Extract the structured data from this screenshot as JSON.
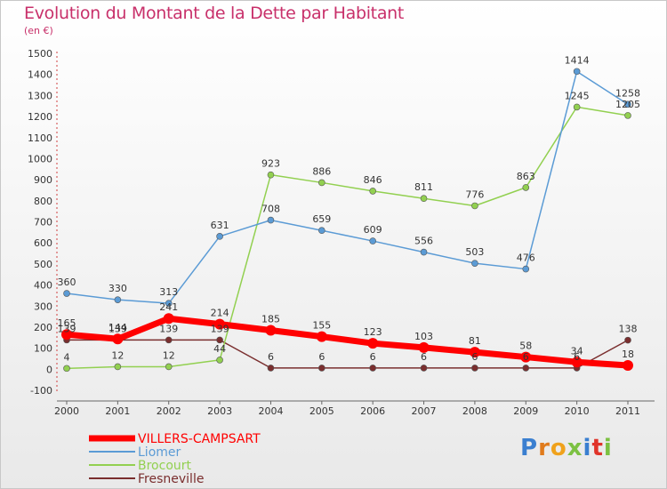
{
  "title": "Evolution du Montant de la Dette par Habitant",
  "subtitle": "(en €)",
  "logo": {
    "text": "Proxiti",
    "letters": [
      {
        "ch": "P",
        "color": "#3a7fd0"
      },
      {
        "ch": "r",
        "color": "#e07b1c"
      },
      {
        "ch": "o",
        "color": "#f0a21c"
      },
      {
        "ch": "x",
        "color": "#7cc142"
      },
      {
        "ch": "i",
        "color": "#3a7fd0"
      },
      {
        "ch": "t",
        "color": "#e0342a"
      },
      {
        "ch": "i",
        "color": "#7cc142"
      }
    ]
  },
  "chart_data": {
    "type": "line",
    "x": [
      "2000",
      "2001",
      "2002",
      "2003",
      "2004",
      "2005",
      "2006",
      "2007",
      "2008",
      "2009",
      "2010",
      "2011"
    ],
    "ylim": [
      -100,
      1500
    ],
    "yticks": [
      -100,
      0,
      100,
      200,
      300,
      400,
      500,
      600,
      700,
      800,
      900,
      1000,
      1100,
      1200,
      1300,
      1400,
      1500
    ],
    "grid": false,
    "legend_position": "bottom-left",
    "series": [
      {
        "name": "VILLERS-CAMPSART",
        "color": "#ff0000",
        "width": 7,
        "marker_r": 6,
        "values": [
          165,
          144,
          241,
          214,
          185,
          155,
          123,
          103,
          81,
          58,
          34,
          18
        ],
        "labels": [
          "165",
          "144",
          "241",
          "214",
          "185",
          "155",
          "123",
          "103",
          "81",
          "58",
          "34",
          "18"
        ]
      },
      {
        "name": "Liomer",
        "color": "#5b9bd5",
        "width": 1.5,
        "marker_r": 3.5,
        "values": [
          360,
          330,
          313,
          631,
          708,
          659,
          609,
          556,
          503,
          476,
          1414,
          1258
        ],
        "labels": [
          "360",
          "330",
          "313",
          "631",
          "708",
          "659",
          "609",
          "556",
          "503",
          "476",
          "1414",
          "1258"
        ]
      },
      {
        "name": "Brocourt",
        "color": "#92d050",
        "width": 1.5,
        "marker_r": 3.5,
        "values": [
          4,
          12,
          12,
          44,
          923,
          886,
          846,
          811,
          776,
          863,
          1245,
          1205
        ],
        "labels": [
          "4",
          "12",
          "12",
          "44",
          "923",
          "886",
          "846",
          "811",
          "776",
          "863",
          "1245",
          "1205"
        ]
      },
      {
        "name": "Fresneville",
        "color": "#7a2e2e",
        "width": 1.5,
        "marker_r": 3.5,
        "values": [
          139,
          139,
          139,
          139,
          6,
          6,
          6,
          6,
          6,
          6,
          6,
          138
        ],
        "labels": [
          "139",
          "139",
          "139",
          "139",
          "6",
          "6",
          "6",
          "6",
          "6",
          "6",
          "6",
          "138"
        ]
      }
    ]
  }
}
